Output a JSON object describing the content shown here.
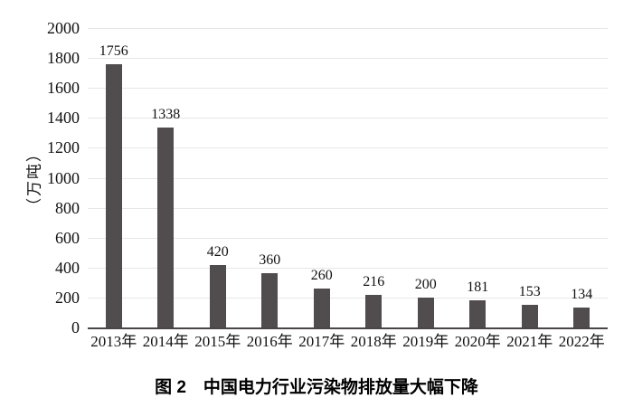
{
  "figure": {
    "caption": "图 2　中国电力行业污染物排放量大幅下降"
  },
  "chart_data": {
    "type": "bar",
    "title": "图 2　中国电力行业污染物排放量大幅下降",
    "categories": [
      "2013年",
      "2014年",
      "2015年",
      "2016年",
      "2017年",
      "2018年",
      "2019年",
      "2020年",
      "2021年",
      "2022年"
    ],
    "values": [
      1756,
      1338,
      420,
      360,
      260,
      216,
      200,
      181,
      153,
      134
    ],
    "xlabel": "",
    "ylabel": "（万吨）",
    "ylim": [
      0,
      2000
    ],
    "yticks": [
      0,
      200,
      400,
      600,
      800,
      1000,
      1200,
      1400,
      1600,
      1800,
      2000
    ],
    "grid": true,
    "legend_position": "none",
    "data_labels": true,
    "bar_color": "#514d4e",
    "gridline_color": "#e7e7e7",
    "axis_line_color": "#4a4647",
    "text_color": "#111111"
  }
}
